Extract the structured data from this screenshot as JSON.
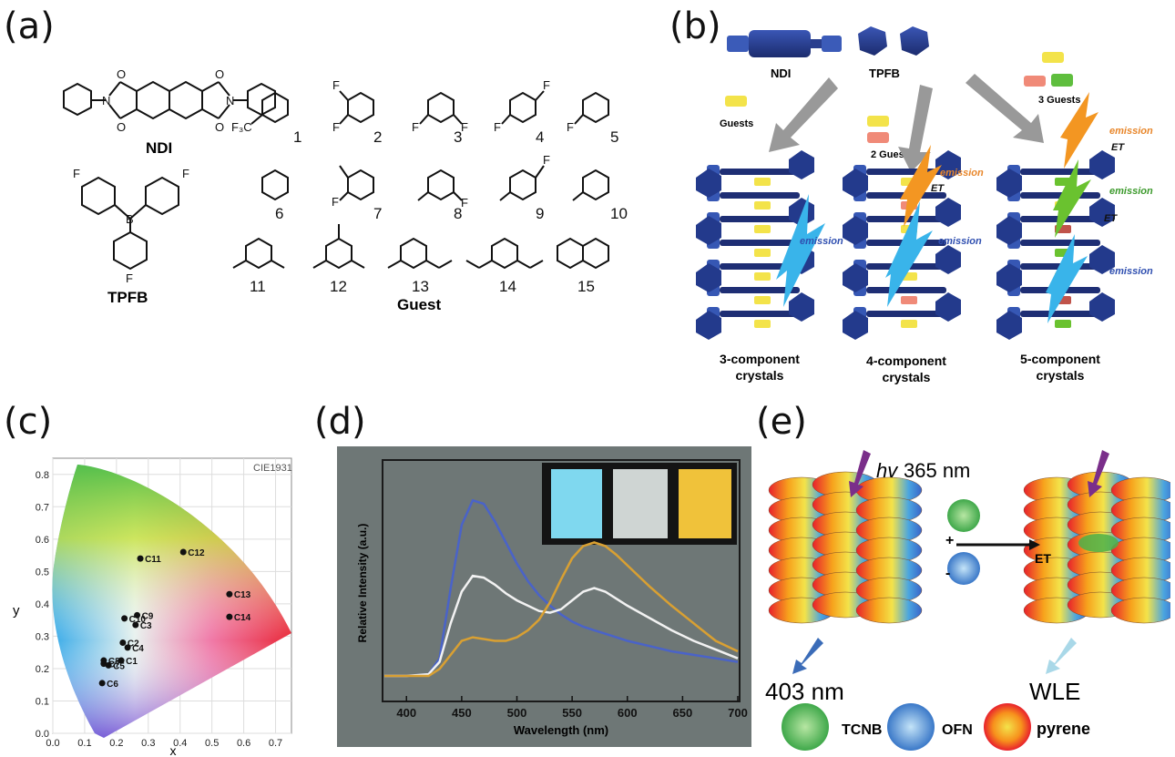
{
  "panels": {
    "a": {
      "label": "(a)",
      "ndi": "NDI",
      "tpfb": "TPFB",
      "guest": "Guest",
      "numbers": [
        "1",
        "2",
        "3",
        "4",
        "5",
        "6",
        "7",
        "8",
        "9",
        "10",
        "11",
        "12",
        "13",
        "14",
        "15"
      ],
      "atoms": {
        "o": "O",
        "n": "N",
        "f": "F",
        "b": "B",
        "f3c": "F₃C"
      }
    },
    "b": {
      "label": "(b)",
      "ndi": "NDI",
      "tpfb": "TPFB",
      "guests": "Guests",
      "guests2": "2 Guests",
      "guests3": "3 Guests",
      "emission": "emission",
      "et": "ET",
      "crystal3": [
        "3-component",
        "crystals"
      ],
      "crystal4": [
        "4-component",
        "crystals"
      ],
      "crystal5": [
        "5-component",
        "crystals"
      ]
    },
    "c": {
      "label": "(c)",
      "cie": "CIE1931",
      "xlabel": "x",
      "ylabel": "y"
    },
    "d": {
      "label": "(d)",
      "xlabel": "Wavelength (nm)",
      "ylabel": "Relative Intensity (a.u.)"
    },
    "e": {
      "label": "(e)",
      "hv": "hv",
      "excitation": "365 nm",
      "plus": "+",
      "minus": "-",
      "et": "ET",
      "emission_left": "403 nm",
      "emission_right": "WLE",
      "tcnb": "TCNB",
      "ofn": "OFN",
      "pyrene": "pyrene"
    }
  },
  "chart_data": [
    {
      "type": "scatter",
      "panel": "c",
      "title": "",
      "xlabel": "x",
      "ylabel": "y",
      "xlim": [
        0.0,
        0.75
      ],
      "ylim": [
        0.0,
        0.85
      ],
      "xticks": [
        "0.0",
        "0.1",
        "0.2",
        "0.3",
        "0.4",
        "0.5",
        "0.6",
        "0.7"
      ],
      "yticks": [
        "0.0",
        "0.1",
        "0.2",
        "0.3",
        "0.4",
        "0.5",
        "0.6",
        "0.7",
        "0.8"
      ],
      "points": [
        {
          "label": "C1",
          "x": 0.215,
          "y": 0.225
        },
        {
          "label": "C2",
          "x": 0.22,
          "y": 0.28
        },
        {
          "label": "C3",
          "x": 0.26,
          "y": 0.335
        },
        {
          "label": "C4",
          "x": 0.235,
          "y": 0.265
        },
        {
          "label": "C5",
          "x": 0.175,
          "y": 0.21
        },
        {
          "label": "C6",
          "x": 0.155,
          "y": 0.155
        },
        {
          "label": "C7",
          "x": 0.16,
          "y": 0.215
        },
        {
          "label": "C8",
          "x": 0.16,
          "y": 0.225
        },
        {
          "label": "C9",
          "x": 0.265,
          "y": 0.365
        },
        {
          "label": "C10",
          "x": 0.225,
          "y": 0.355
        },
        {
          "label": "C11",
          "x": 0.275,
          "y": 0.54
        },
        {
          "label": "C12",
          "x": 0.41,
          "y": 0.56
        },
        {
          "label": "C13",
          "x": 0.555,
          "y": 0.43
        },
        {
          "label": "C14",
          "x": 0.555,
          "y": 0.36
        }
      ]
    },
    {
      "type": "line",
      "panel": "d",
      "title": "",
      "xlabel": "Wavelength (nm)",
      "ylabel": "Relative Intensity (a.u.)",
      "xlim": [
        380,
        700
      ],
      "ylim": [
        0,
        1.1
      ],
      "xticks": [
        "400",
        "450",
        "500",
        "550",
        "600",
        "650",
        "700"
      ],
      "x": [
        380,
        400,
        420,
        430,
        440,
        450,
        460,
        470,
        480,
        490,
        500,
        510,
        520,
        530,
        540,
        550,
        560,
        570,
        580,
        590,
        600,
        620,
        640,
        660,
        680,
        700
      ],
      "series": [
        {
          "color": "#4a63c8",
          "values": [
            0.0,
            0.0,
            0.01,
            0.1,
            0.5,
            0.86,
            1.0,
            0.98,
            0.88,
            0.76,
            0.64,
            0.54,
            0.46,
            0.4,
            0.35,
            0.31,
            0.28,
            0.26,
            0.24,
            0.22,
            0.2,
            0.17,
            0.14,
            0.12,
            0.1,
            0.08
          ]
        },
        {
          "color": "#f2f2f2",
          "values": [
            0.0,
            0.0,
            0.01,
            0.08,
            0.3,
            0.48,
            0.57,
            0.56,
            0.52,
            0.47,
            0.43,
            0.4,
            0.37,
            0.36,
            0.38,
            0.43,
            0.48,
            0.5,
            0.48,
            0.44,
            0.4,
            0.33,
            0.26,
            0.2,
            0.15,
            0.1
          ]
        },
        {
          "color": "#d9a032",
          "values": [
            0.0,
            0.0,
            0.0,
            0.04,
            0.12,
            0.2,
            0.22,
            0.21,
            0.2,
            0.2,
            0.22,
            0.26,
            0.32,
            0.42,
            0.55,
            0.67,
            0.74,
            0.76,
            0.74,
            0.69,
            0.63,
            0.51,
            0.4,
            0.3,
            0.2,
            0.14
          ]
        }
      ]
    }
  ]
}
